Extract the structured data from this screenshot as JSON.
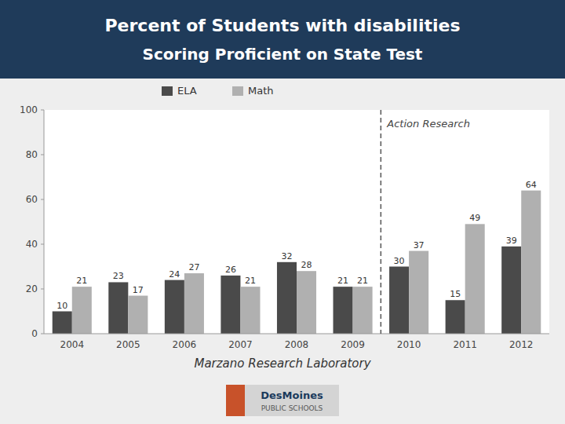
{
  "chart_data": {
    "type": "bar",
    "title": "Percent of Students with disabilities",
    "subtitle": "Scoring Proficient on State Test",
    "categories": [
      "2004",
      "2005",
      "2006",
      "2007",
      "2008",
      "2009",
      "2010",
      "2011",
      "2012"
    ],
    "series": [
      {
        "name": "ELA",
        "color": "#4a4a4a",
        "values": [
          10,
          23,
          24,
          26,
          32,
          21,
          30,
          15,
          39
        ]
      },
      {
        "name": "Math",
        "color": "#b0b0b0",
        "values": [
          21,
          17,
          27,
          21,
          28,
          21,
          37,
          49,
          64
        ]
      }
    ],
    "ylim": [
      0,
      100
    ],
    "yticks": [
      0,
      20,
      40,
      60,
      80,
      100
    ],
    "grid": false,
    "legend": "top",
    "data_labels": true,
    "annotations": [
      {
        "text": "Action Research",
        "after": "2009"
      }
    ],
    "footer": "Marzano Research Laboratory",
    "logo_text": [
      "DesMoines",
      "PUBLIC SCHOOLS"
    ]
  }
}
